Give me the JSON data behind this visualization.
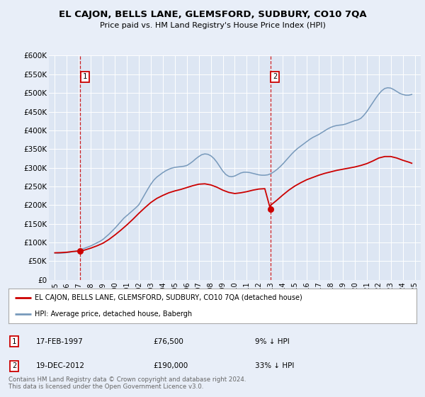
{
  "title": "EL CAJON, BELLS LANE, GLEMSFORD, SUDBURY, CO10 7QA",
  "subtitle": "Price paid vs. HM Land Registry's House Price Index (HPI)",
  "ylim": [
    0,
    600000
  ],
  "yticks": [
    0,
    50000,
    100000,
    150000,
    200000,
    250000,
    300000,
    350000,
    400000,
    450000,
    500000,
    550000,
    600000
  ],
  "ytick_labels": [
    "£0",
    "£50K",
    "£100K",
    "£150K",
    "£200K",
    "£250K",
    "£300K",
    "£350K",
    "£400K",
    "£450K",
    "£500K",
    "£550K",
    "£600K"
  ],
  "xlim_start": 1994.5,
  "xlim_end": 2025.5,
  "xticks": [
    1995,
    1996,
    1997,
    1998,
    1999,
    2000,
    2001,
    2002,
    2003,
    2004,
    2005,
    2006,
    2007,
    2008,
    2009,
    2010,
    2011,
    2012,
    2013,
    2014,
    2015,
    2016,
    2017,
    2018,
    2019,
    2020,
    2021,
    2022,
    2023,
    2024,
    2025
  ],
  "background_color": "#e8eef8",
  "plot_bg_color": "#dde6f3",
  "grid_color": "#ffffff",
  "red_line_color": "#cc0000",
  "blue_line_color": "#7799bb",
  "sale1_x": 1997.12,
  "sale1_y": 76500,
  "sale1_label": "1",
  "sale2_x": 2012.96,
  "sale2_y": 190000,
  "sale2_label": "2",
  "annotation_box_color": "#cc0000",
  "legend_label1": "EL CAJON, BELLS LANE, GLEMSFORD, SUDBURY, CO10 7QA (detached house)",
  "legend_label2": "HPI: Average price, detached house, Babergh",
  "table_row1_num": "1",
  "table_row1_date": "17-FEB-1997",
  "table_row1_price": "£76,500",
  "table_row1_hpi": "9% ↓ HPI",
  "table_row2_num": "2",
  "table_row2_date": "19-DEC-2012",
  "table_row2_price": "£190,000",
  "table_row2_hpi": "33% ↓ HPI",
  "footer": "Contains HM Land Registry data © Crown copyright and database right 2024.\nThis data is licensed under the Open Government Licence v3.0.",
  "hpi_data": [
    [
      1995.0,
      72000
    ],
    [
      1995.25,
      71000
    ],
    [
      1995.5,
      71500
    ],
    [
      1995.75,
      72000
    ],
    [
      1996.0,
      73000
    ],
    [
      1996.25,
      74000
    ],
    [
      1996.5,
      75500
    ],
    [
      1996.75,
      77000
    ],
    [
      1997.0,
      79000
    ],
    [
      1997.25,
      82000
    ],
    [
      1997.5,
      85000
    ],
    [
      1997.75,
      88000
    ],
    [
      1998.0,
      91000
    ],
    [
      1998.25,
      95000
    ],
    [
      1998.5,
      99000
    ],
    [
      1998.75,
      103000
    ],
    [
      1999.0,
      108000
    ],
    [
      1999.25,
      115000
    ],
    [
      1999.5,
      122000
    ],
    [
      1999.75,
      130000
    ],
    [
      2000.0,
      138000
    ],
    [
      2000.25,
      147000
    ],
    [
      2000.5,
      156000
    ],
    [
      2000.75,
      165000
    ],
    [
      2001.0,
      172000
    ],
    [
      2001.25,
      179000
    ],
    [
      2001.5,
      186000
    ],
    [
      2001.75,
      193000
    ],
    [
      2002.0,
      201000
    ],
    [
      2002.25,
      215000
    ],
    [
      2002.5,
      229000
    ],
    [
      2002.75,
      243000
    ],
    [
      2003.0,
      256000
    ],
    [
      2003.25,
      267000
    ],
    [
      2003.5,
      275000
    ],
    [
      2003.75,
      281000
    ],
    [
      2004.0,
      287000
    ],
    [
      2004.25,
      292000
    ],
    [
      2004.5,
      296000
    ],
    [
      2004.75,
      299000
    ],
    [
      2005.0,
      301000
    ],
    [
      2005.25,
      302000
    ],
    [
      2005.5,
      303000
    ],
    [
      2005.75,
      304000
    ],
    [
      2006.0,
      306000
    ],
    [
      2006.25,
      311000
    ],
    [
      2006.5,
      317000
    ],
    [
      2006.75,
      324000
    ],
    [
      2007.0,
      330000
    ],
    [
      2007.25,
      335000
    ],
    [
      2007.5,
      337000
    ],
    [
      2007.75,
      336000
    ],
    [
      2008.0,
      332000
    ],
    [
      2008.25,
      325000
    ],
    [
      2008.5,
      315000
    ],
    [
      2008.75,
      303000
    ],
    [
      2009.0,
      291000
    ],
    [
      2009.25,
      282000
    ],
    [
      2009.5,
      277000
    ],
    [
      2009.75,
      276000
    ],
    [
      2010.0,
      278000
    ],
    [
      2010.25,
      282000
    ],
    [
      2010.5,
      286000
    ],
    [
      2010.75,
      288000
    ],
    [
      2011.0,
      288000
    ],
    [
      2011.25,
      287000
    ],
    [
      2011.5,
      285000
    ],
    [
      2011.75,
      283000
    ],
    [
      2012.0,
      281000
    ],
    [
      2012.25,
      280000
    ],
    [
      2012.5,
      280000
    ],
    [
      2012.75,
      281000
    ],
    [
      2013.0,
      284000
    ],
    [
      2013.25,
      289000
    ],
    [
      2013.5,
      295000
    ],
    [
      2013.75,
      302000
    ],
    [
      2014.0,
      310000
    ],
    [
      2014.25,
      319000
    ],
    [
      2014.5,
      328000
    ],
    [
      2014.75,
      337000
    ],
    [
      2015.0,
      345000
    ],
    [
      2015.25,
      352000
    ],
    [
      2015.5,
      358000
    ],
    [
      2015.75,
      364000
    ],
    [
      2016.0,
      370000
    ],
    [
      2016.25,
      376000
    ],
    [
      2016.5,
      381000
    ],
    [
      2016.75,
      385000
    ],
    [
      2017.0,
      389000
    ],
    [
      2017.25,
      394000
    ],
    [
      2017.5,
      399000
    ],
    [
      2017.75,
      404000
    ],
    [
      2018.0,
      408000
    ],
    [
      2018.25,
      411000
    ],
    [
      2018.5,
      413000
    ],
    [
      2018.75,
      414000
    ],
    [
      2019.0,
      415000
    ],
    [
      2019.25,
      417000
    ],
    [
      2019.5,
      420000
    ],
    [
      2019.75,
      423000
    ],
    [
      2020.0,
      426000
    ],
    [
      2020.25,
      428000
    ],
    [
      2020.5,
      432000
    ],
    [
      2020.75,
      440000
    ],
    [
      2021.0,
      450000
    ],
    [
      2021.25,
      462000
    ],
    [
      2021.5,
      474000
    ],
    [
      2021.75,
      486000
    ],
    [
      2022.0,
      497000
    ],
    [
      2022.25,
      506000
    ],
    [
      2022.5,
      512000
    ],
    [
      2022.75,
      514000
    ],
    [
      2023.0,
      513000
    ],
    [
      2023.25,
      509000
    ],
    [
      2023.5,
      504000
    ],
    [
      2023.75,
      499000
    ],
    [
      2024.0,
      496000
    ],
    [
      2024.25,
      494000
    ],
    [
      2024.5,
      494000
    ],
    [
      2024.75,
      496000
    ]
  ],
  "price_data": [
    [
      1995.0,
      72500
    ],
    [
      1995.5,
      73000
    ],
    [
      1996.0,
      74000
    ],
    [
      1996.5,
      76000
    ],
    [
      1997.0,
      77000
    ],
    [
      1997.12,
      76500
    ],
    [
      1997.5,
      80000
    ],
    [
      1998.0,
      85000
    ],
    [
      1998.5,
      91000
    ],
    [
      1999.0,
      98000
    ],
    [
      1999.5,
      108000
    ],
    [
      2000.0,
      120000
    ],
    [
      2000.5,
      133000
    ],
    [
      2001.0,
      147000
    ],
    [
      2001.5,
      162000
    ],
    [
      2002.0,
      178000
    ],
    [
      2002.5,
      193000
    ],
    [
      2003.0,
      207000
    ],
    [
      2003.5,
      218000
    ],
    [
      2004.0,
      226000
    ],
    [
      2004.5,
      233000
    ],
    [
      2005.0,
      238000
    ],
    [
      2005.5,
      242000
    ],
    [
      2006.0,
      247000
    ],
    [
      2006.5,
      252000
    ],
    [
      2007.0,
      256000
    ],
    [
      2007.5,
      257000
    ],
    [
      2008.0,
      254000
    ],
    [
      2008.5,
      248000
    ],
    [
      2009.0,
      240000
    ],
    [
      2009.5,
      234000
    ],
    [
      2010.0,
      231000
    ],
    [
      2010.5,
      233000
    ],
    [
      2011.0,
      236000
    ],
    [
      2011.5,
      240000
    ],
    [
      2012.0,
      243000
    ],
    [
      2012.5,
      244000
    ],
    [
      2012.96,
      190000
    ],
    [
      2013.0,
      200000
    ],
    [
      2013.5,
      213000
    ],
    [
      2014.0,
      227000
    ],
    [
      2014.5,
      240000
    ],
    [
      2015.0,
      251000
    ],
    [
      2015.5,
      260000
    ],
    [
      2016.0,
      268000
    ],
    [
      2016.5,
      274000
    ],
    [
      2017.0,
      280000
    ],
    [
      2017.5,
      285000
    ],
    [
      2018.0,
      289000
    ],
    [
      2018.5,
      293000
    ],
    [
      2019.0,
      296000
    ],
    [
      2019.5,
      299000
    ],
    [
      2020.0,
      302000
    ],
    [
      2020.5,
      306000
    ],
    [
      2021.0,
      311000
    ],
    [
      2021.5,
      318000
    ],
    [
      2022.0,
      326000
    ],
    [
      2022.5,
      330000
    ],
    [
      2023.0,
      330000
    ],
    [
      2023.5,
      326000
    ],
    [
      2024.0,
      320000
    ],
    [
      2024.5,
      315000
    ],
    [
      2024.75,
      312000
    ]
  ]
}
